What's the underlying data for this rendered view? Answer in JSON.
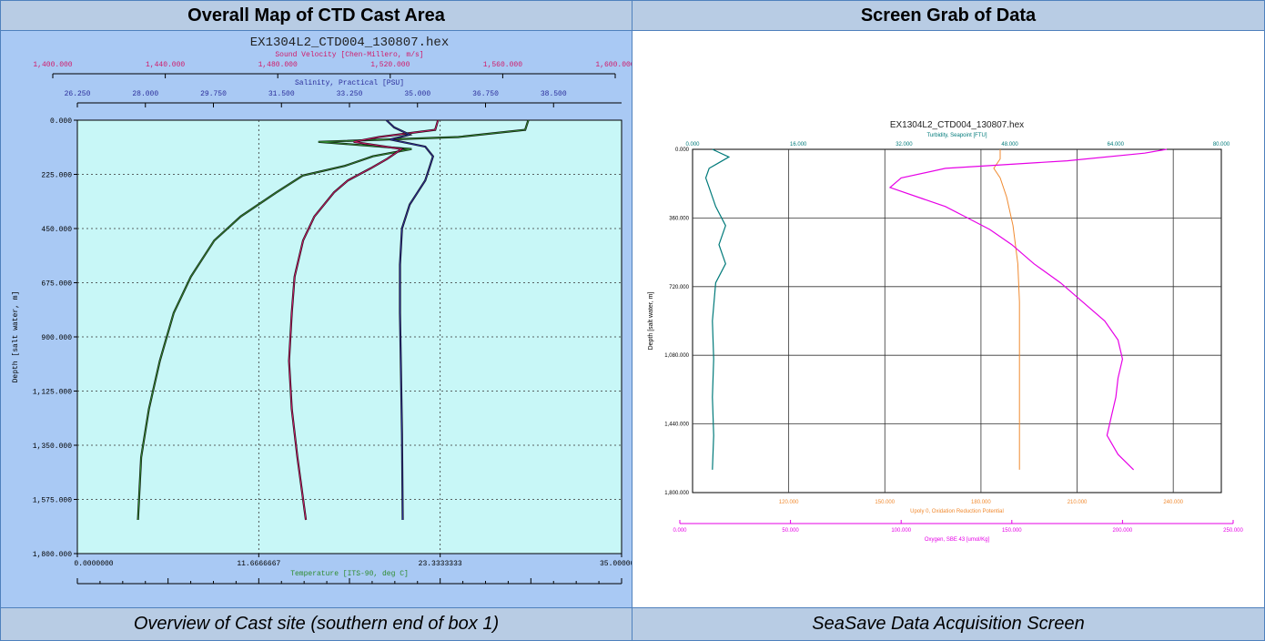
{
  "table": {
    "left_header": "Overall Map of CTD Cast Area",
    "right_header": "Screen Grab of Data",
    "left_caption": "Overview of Cast site (southern end of box 1)",
    "right_caption": "SeaSave Data Acquisition Screen"
  },
  "colors": {
    "header_bg": "#b8cce4",
    "border": "#4f81bd",
    "left_plot_bg": "#c8f7f7",
    "left_frame_bg": "#a9c9f4",
    "sound_velocity": "#d01a6a",
    "salinity": "#2b2e9b",
    "temperature": "#2e8b2e",
    "turbidity": "#007a7a",
    "oxygen": "#e600e6",
    "orp": "#f08a30"
  },
  "chart_data": [
    {
      "type": "line",
      "title": "EX1304L2_CTD004_130807.hex",
      "ylabel": "Depth [salt water, m]",
      "ylim": [
        0,
        1800
      ],
      "yticks": [
        "0.000",
        "225.000",
        "450.000",
        "675.000",
        "900.000",
        "1,125.000",
        "1,350.000",
        "1,575.000",
        "1,800.000"
      ],
      "axes": {
        "sound_velocity": {
          "label": "Sound Velocity [Chen-Millero, m/s]",
          "range": [
            1400,
            1600
          ],
          "ticks": [
            "1,400.000",
            "1,440.000",
            "1,480.000",
            "1,520.000",
            "1,560.000",
            "1,600.000"
          ]
        },
        "salinity": {
          "label": "Salinity, Practical [PSU]",
          "range": [
            26.25,
            40.25
          ],
          "ticks": [
            "26.250",
            "28.000",
            "29.750",
            "31.500",
            "33.250",
            "35.000",
            "36.750",
            "38.500"
          ]
        },
        "temperature": {
          "label": "Temperature [ITS-90, deg C]",
          "range": [
            0,
            35
          ],
          "ticks": [
            "0.0000000",
            "11.6666667",
            "23.3333333",
            "35.0000000"
          ]
        }
      },
      "series": [
        {
          "axis": "temperature",
          "color": "#2e8b2e",
          "depth": [
            0,
            40,
            70,
            90,
            120,
            150,
            190,
            230,
            300,
            400,
            500,
            650,
            800,
            1000,
            1200,
            1400,
            1660
          ],
          "values": [
            29.0,
            28.8,
            24.5,
            15.5,
            21.5,
            19.0,
            17.2,
            14.5,
            12.8,
            10.5,
            8.8,
            7.3,
            6.2,
            5.3,
            4.6,
            4.1,
            3.9
          ]
        },
        {
          "axis": "sound_velocity",
          "color": "#d01a6a",
          "depth": [
            0,
            40,
            70,
            90,
            120,
            160,
            200,
            250,
            300,
            400,
            500,
            650,
            800,
            1000,
            1200,
            1400,
            1660
          ],
          "values": [
            1537,
            1536,
            1516,
            1507,
            1524,
            1519,
            1513,
            1505,
            1500,
            1493,
            1489,
            1486,
            1485,
            1484,
            1485,
            1487,
            1490
          ]
        },
        {
          "axis": "salinity",
          "color": "#2b2e9b",
          "depth": [
            0,
            30,
            60,
            80,
            110,
            150,
            200,
            250,
            300,
            350,
            450,
            600,
            800,
            1000,
            1300,
            1660
          ],
          "values": [
            34.2,
            34.4,
            34.8,
            34.3,
            35.2,
            35.4,
            35.3,
            35.2,
            35.0,
            34.8,
            34.6,
            34.55,
            34.55,
            34.57,
            34.6,
            34.62
          ]
        }
      ]
    },
    {
      "type": "line",
      "title": "EX1304L2_CTD004_130807.hex",
      "ylabel": "Depth [salt water, m]",
      "ylim": [
        0,
        1800
      ],
      "yticks": [
        "0.000",
        "360.000",
        "720.000",
        "1,080.000",
        "1,440.000",
        "1,800.000"
      ],
      "axes": {
        "turbidity": {
          "label": "Turbidity, Seapoint [FTU]",
          "range": [
            0,
            80
          ],
          "ticks": [
            "0.000",
            "16.000",
            "32.000",
            "48.000",
            "64.000",
            "80.000"
          ]
        },
        "orp": {
          "label": "Upoly 0, Oxidation Reduction Potential",
          "range": [
            90,
            255
          ],
          "ticks": [
            "120.000",
            "150.000",
            "180.000",
            "210.000",
            "240.000"
          ]
        },
        "oxygen": {
          "label": "Oxygen, SBE 43 [umol/Kg]",
          "range": [
            0,
            250
          ],
          "ticks": [
            "0.000",
            "50.000",
            "100.000",
            "150.000",
            "200.000",
            "250.000"
          ]
        }
      },
      "series": [
        {
          "axis": "turbidity",
          "color": "#007a7a",
          "depth": [
            0,
            40,
            70,
            100,
            150,
            200,
            300,
            400,
            500,
            600,
            700,
            900,
            1100,
            1300,
            1500,
            1680
          ],
          "values": [
            3.0,
            5.5,
            4.0,
            2.5,
            2.0,
            2.5,
            3.5,
            5.0,
            4.0,
            5.0,
            3.5,
            3.0,
            3.2,
            3.0,
            3.2,
            3.0
          ]
        },
        {
          "axis": "orp",
          "color": "#f08a30",
          "depth": [
            0,
            50,
            100,
            150,
            250,
            400,
            600,
            800,
            1000,
            1200,
            1400,
            1680
          ],
          "values": [
            186,
            186,
            184,
            186,
            188,
            190,
            191.5,
            192,
            192,
            192,
            192,
            192
          ]
        },
        {
          "axis": "oxygen",
          "color": "#e600e6",
          "depth": [
            0,
            20,
            60,
            100,
            150,
            200,
            260,
            300,
            360,
            420,
            500,
            600,
            700,
            800,
            900,
            1000,
            1100,
            1200,
            1300,
            1400,
            1500,
            1600,
            1680
          ],
          "values": [
            220,
            210,
            175,
            120,
            100,
            95,
            110,
            120,
            130,
            140,
            150,
            160,
            172,
            182,
            192,
            198,
            200,
            198,
            197,
            195,
            193,
            198,
            205
          ]
        }
      ]
    }
  ]
}
